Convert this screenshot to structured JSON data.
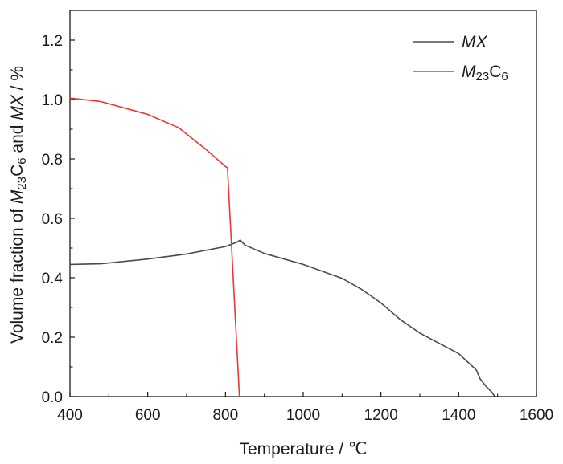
{
  "chart_data": {
    "type": "line",
    "xlabel": "Temperature / ℃",
    "ylabel_parts": [
      "Volume fraction of ",
      "M",
      "23",
      "C",
      "6",
      " and ",
      "MX",
      " / %"
    ],
    "xlim": [
      400,
      1600
    ],
    "ylim": [
      0.0,
      1.3
    ],
    "x_ticks": [
      400,
      600,
      800,
      1000,
      1200,
      1400,
      1600
    ],
    "x_tick_labels": [
      "400",
      "600",
      "800",
      "1000",
      "1200",
      "1400",
      "1600"
    ],
    "y_ticks": [
      0.0,
      0.2,
      0.4,
      0.6,
      0.8,
      1.0,
      1.2
    ],
    "y_tick_labels": [
      "0.0",
      "0.2",
      "0.4",
      "0.6",
      "0.8",
      "1.0",
      "1.2"
    ],
    "grid": false,
    "legend_position": "top-right",
    "series": [
      {
        "name": "MX",
        "name_parts": [
          "MX"
        ],
        "color": "#4a4a4a",
        "x": [
          400,
          480,
          600,
          700,
          800,
          830,
          838,
          850,
          900,
          1000,
          1100,
          1150,
          1200,
          1250,
          1300,
          1350,
          1400,
          1420,
          1445,
          1455,
          1470,
          1485,
          1493
        ],
        "y": [
          0.445,
          0.447,
          0.463,
          0.48,
          0.505,
          0.52,
          0.527,
          0.51,
          0.482,
          0.445,
          0.398,
          0.361,
          0.315,
          0.259,
          0.214,
          0.179,
          0.145,
          0.12,
          0.09,
          0.06,
          0.035,
          0.015,
          0.0
        ]
      },
      {
        "name": "M23C6",
        "name_parts": [
          "M",
          "23",
          "C",
          "6"
        ],
        "color": "#e53935",
        "x": [
          400,
          480,
          550,
          600,
          680,
          750,
          800,
          805,
          836
        ],
        "y": [
          1.005,
          0.993,
          0.968,
          0.95,
          0.905,
          0.832,
          0.775,
          0.77,
          0.0
        ]
      }
    ]
  }
}
